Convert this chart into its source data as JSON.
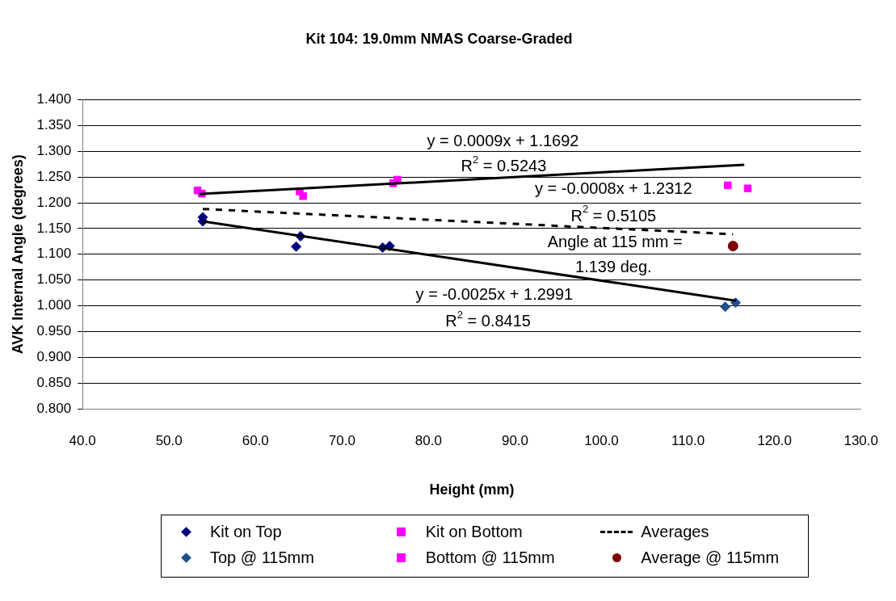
{
  "chart_data": {
    "type": "scatter",
    "title": "Kit 104: 19.0mm NMAS Coarse-Graded",
    "xlabel": "Height (mm)",
    "ylabel": "AVK Internal Angle (degrees)",
    "xlim": [
      40,
      130
    ],
    "xticks": [
      {
        "value": 40,
        "label": "40.0"
      },
      {
        "value": 50,
        "label": "50.0"
      },
      {
        "value": 60,
        "label": "60.0"
      },
      {
        "value": 70,
        "label": "70.0"
      },
      {
        "value": 80,
        "label": "80.0"
      },
      {
        "value": 90,
        "label": "90.0"
      },
      {
        "value": 100,
        "label": "100.0"
      },
      {
        "value": 110,
        "label": "110.0"
      },
      {
        "value": 120,
        "label": "120.0"
      },
      {
        "value": 130,
        "label": "130.0"
      }
    ],
    "ylim": [
      0.8,
      1.4
    ],
    "yticks": [
      {
        "value": 0.8,
        "label": "0.800"
      },
      {
        "value": 0.85,
        "label": "0.850"
      },
      {
        "value": 0.9,
        "label": "0.900"
      },
      {
        "value": 0.95,
        "label": "0.950"
      },
      {
        "value": 1.0,
        "label": "1.000"
      },
      {
        "value": 1.05,
        "label": "1.050"
      },
      {
        "value": 1.1,
        "label": "1.100"
      },
      {
        "value": 1.15,
        "label": "1.150"
      },
      {
        "value": 1.2,
        "label": "1.200"
      },
      {
        "value": 1.25,
        "label": "1.250"
      },
      {
        "value": 1.3,
        "label": "1.300"
      },
      {
        "value": 1.35,
        "label": "1.350"
      },
      {
        "value": 1.4,
        "label": "1.400"
      }
    ],
    "grid": "y",
    "legend": "bottom",
    "series": [
      {
        "name": "Kit on Top",
        "marker": "diamond",
        "color": "#000080",
        "x": [
          53.9,
          53.9,
          65.2,
          64.7,
          74.7,
          75.5
        ],
        "values": [
          1.172,
          1.164,
          1.135,
          1.115,
          1.113,
          1.116
        ]
      },
      {
        "name": "Kit on Bottom",
        "marker": "square",
        "color": "#ff00ff",
        "x": [
          53.3,
          53.8,
          65.1,
          65.5,
          75.9,
          76.4
        ],
        "values": [
          1.224,
          1.218,
          1.222,
          1.213,
          1.238,
          1.245
        ]
      },
      {
        "name": "Averages",
        "type": "line",
        "line_style": "dashed",
        "color": "#000000",
        "x": [
          53.9,
          115.2
        ],
        "values": [
          1.188,
          1.139
        ]
      },
      {
        "name": "Top @ 115mm",
        "marker": "diamond",
        "color": "#1f4e8c",
        "x": [
          114.3,
          115.5
        ],
        "values": [
          0.998,
          1.006
        ]
      },
      {
        "name": "Bottom @ 115mm",
        "marker": "square",
        "color": "#ff00ff",
        "x": [
          114.6,
          116.9
        ],
        "values": [
          1.234,
          1.228
        ]
      },
      {
        "name": "Average @ 115mm",
        "marker": "circle",
        "color": "#800000",
        "x": [
          115.2
        ],
        "values": [
          1.116
        ]
      },
      {
        "type": "line",
        "line_style": "solid",
        "color": "#000000",
        "x": [
          53.9,
          115.5
        ],
        "values": [
          1.164,
          1.01
        ]
      },
      {
        "type": "line",
        "line_style": "solid",
        "color": "#000000",
        "x": [
          53.5,
          116.5
        ],
        "values": [
          1.217,
          1.274
        ]
      }
    ],
    "annotations": [
      "y = 0.0009x + 1.1692",
      "R$^{2}$ = 0.5243",
      "y = -0.0008x + 1.2312",
      "R$^{2}$ = 0.5105",
      "Angle at 115 mm =",
      "1.139 deg.",
      "y = -0.0025x + 1.2991",
      "R$^{2}$ = 0.8415"
    ]
  }
}
